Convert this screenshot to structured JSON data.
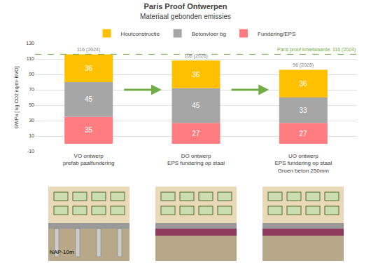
{
  "chart_data": {
    "type": "bar",
    "stacked": true,
    "title": "Paris Proof Ontwerpen",
    "subtitle": "Materiaal gebonden emissies",
    "y_label": "GWPa [ kg CO2 eq/m² BVO]",
    "categories": [
      "VO ontwerp\nprefab paalfundering",
      "DO ontwerp\nEPS fundering op staal",
      "UO ontwerp\nEPS fundering op staal\nGroen beton 250mm"
    ],
    "series": [
      {
        "name": "Fundering/EPS",
        "color": "#FF7C80",
        "values": [
          35,
          27,
          27
        ]
      },
      {
        "name": "Betonvloer bg",
        "color": "#A6A6A6",
        "values": [
          45,
          45,
          33
        ]
      },
      {
        "name": "Houtconstructie",
        "color": "#FFC000",
        "values": [
          36,
          36,
          36
        ]
      }
    ],
    "ylim": [
      -10,
      130
    ],
    "yticks": [
      -10,
      10,
      30,
      50,
      70,
      90,
      110,
      130
    ],
    "grid": true,
    "legend": "top",
    "data_labels": true,
    "annotations": [
      {
        "text": "116 (2024)",
        "x": 0,
        "y": 116
      },
      {
        "text": "108 (2026)",
        "x": 1,
        "y": 108
      },
      {
        "text": "96 (2028)",
        "x": 2,
        "y": 96
      }
    ],
    "reference_line": {
      "y": 116,
      "label": "Paris proof limietwaarde: 116 (2024)",
      "color": "#70AD47",
      "line_style": "dash"
    },
    "illustration_label": "NAP-10m"
  }
}
